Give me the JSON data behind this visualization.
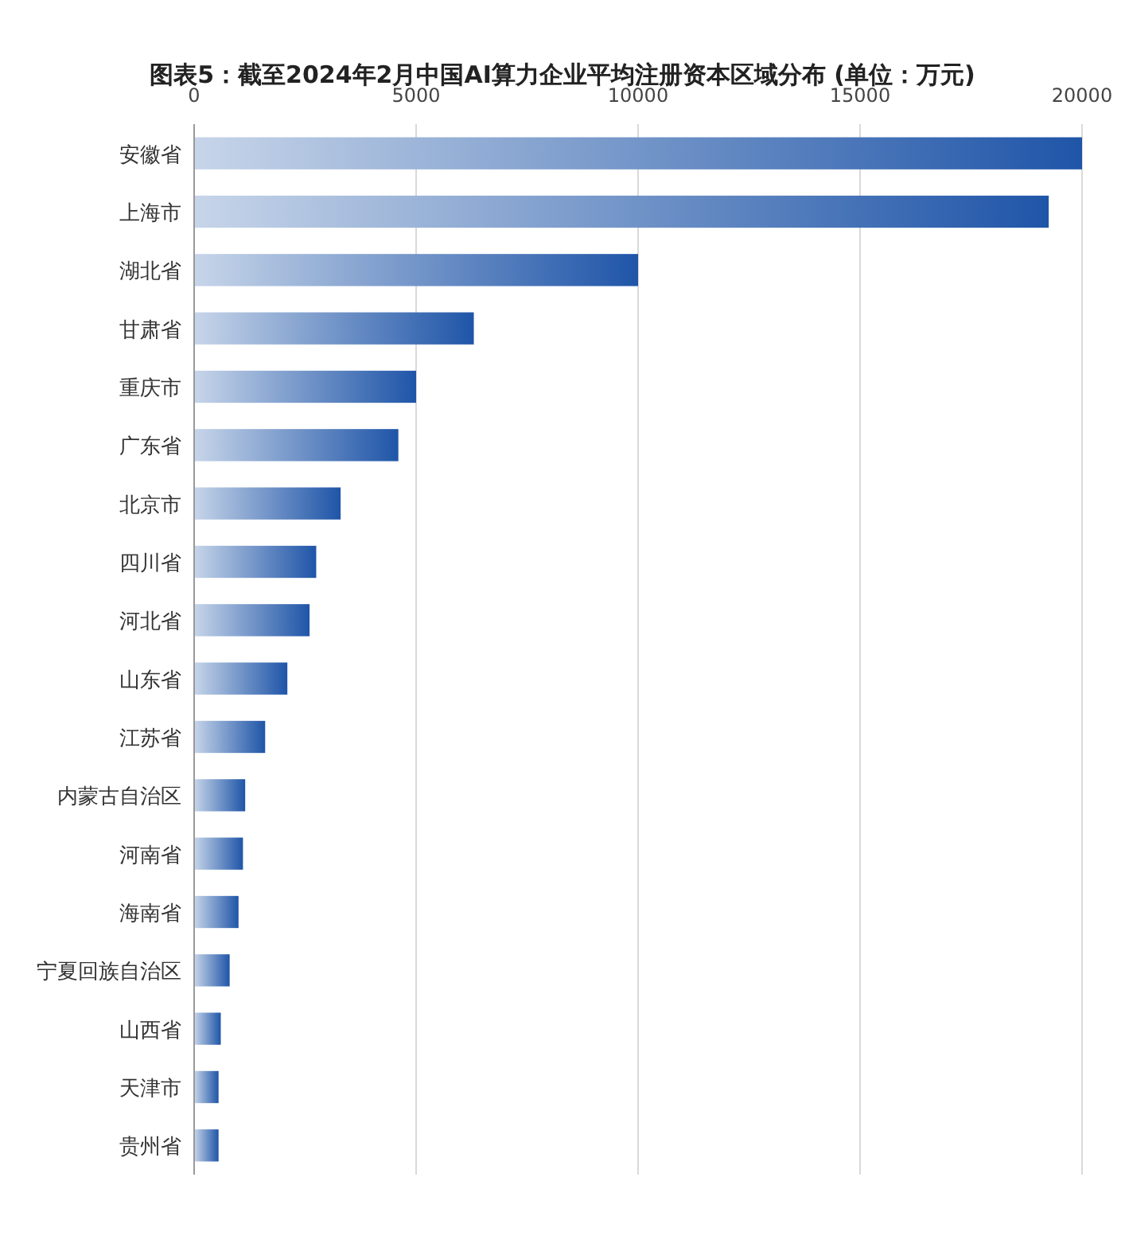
{
  "chart_data": {
    "type": "bar",
    "orientation": "horizontal",
    "title": "图表5：截至2024年2月中国AI算力企业平均注册资本区域分布 (单位：万元)",
    "categories": [
      "安徽省",
      "上海市",
      "湖北省",
      "甘肃省",
      "重庆市",
      "广东省",
      "北京市",
      "四川省",
      "河北省",
      "山东省",
      "江苏省",
      "内蒙古自治区",
      "河南省",
      "海南省",
      "宁夏回族自治区",
      "山西省",
      "天津市",
      "贵州省"
    ],
    "values": [
      20000,
      19250,
      10000,
      6300,
      5000,
      4600,
      3300,
      2750,
      2600,
      2100,
      1600,
      1150,
      1100,
      1000,
      800,
      600,
      550,
      550
    ],
    "color": "#1f55a8",
    "xlim": [
      0,
      20000
    ],
    "xticks": [
      0,
      5000,
      10000,
      15000,
      20000
    ],
    "grid": "x"
  }
}
